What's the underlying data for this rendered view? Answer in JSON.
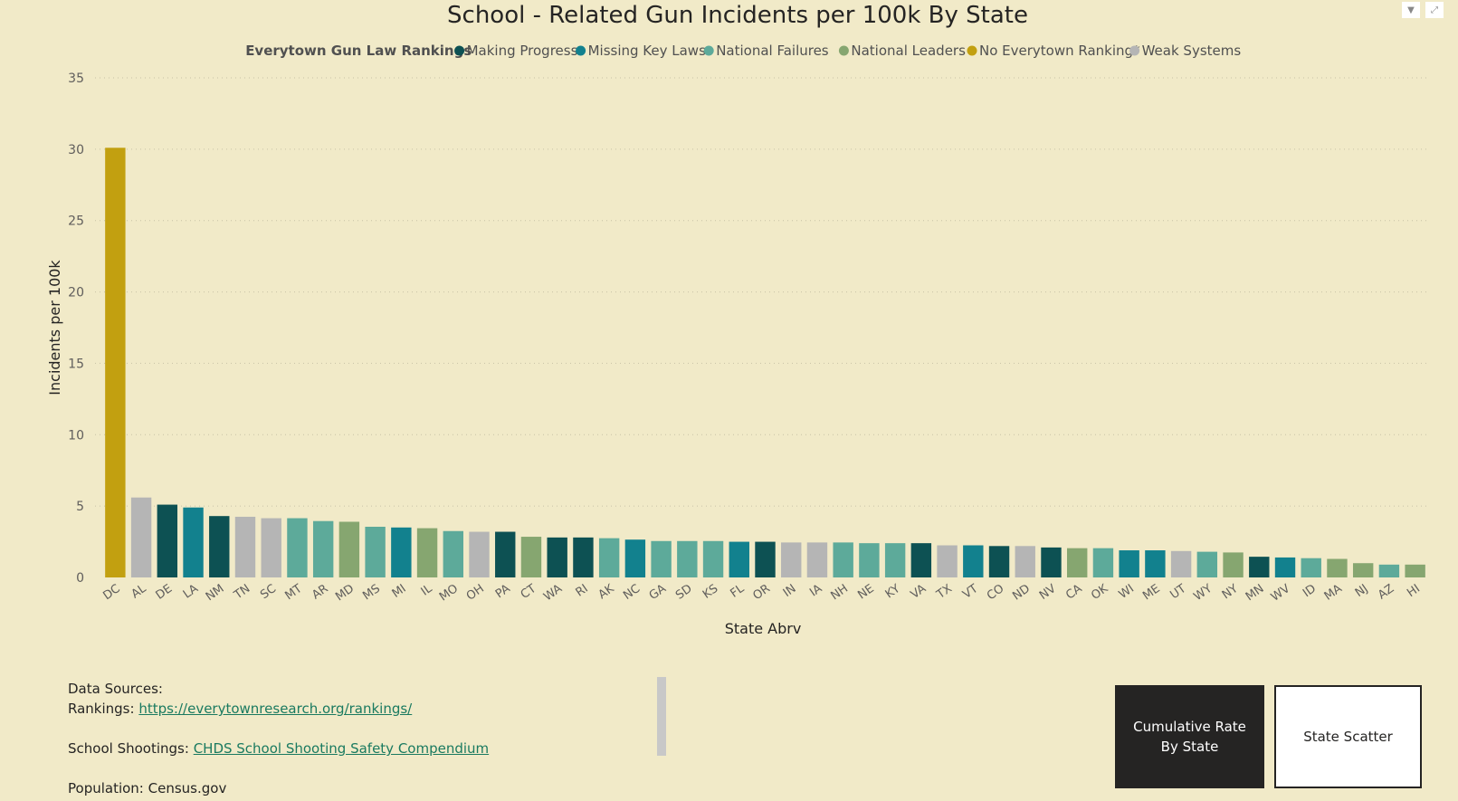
{
  "chart_data": {
    "type": "bar",
    "title": "School - Related Gun Incidents per 100k By State",
    "xlabel": "State Abrv",
    "ylabel": "Incidents per 100k",
    "ylim": [
      0,
      35
    ],
    "yticks": [
      0,
      5,
      10,
      15,
      20,
      25,
      30,
      35
    ],
    "grid": true,
    "legend": {
      "title": "Everytown Gun Law Rankings",
      "placement": "top-center",
      "entries": [
        {
          "name": "Making Progress",
          "color": "#0D5153"
        },
        {
          "name": "Missing Key Laws",
          "color": "#12818E"
        },
        {
          "name": "National Failures",
          "color": "#5DAA9A"
        },
        {
          "name": "National Leaders",
          "color": "#86A670"
        },
        {
          "name": "No Everytown Ranking*",
          "color": "#C2A010"
        },
        {
          "name": "Weak Systems",
          "color": "#B5B5B5"
        }
      ]
    },
    "categories": [
      "DC",
      "AL",
      "DE",
      "LA",
      "NM",
      "TN",
      "SC",
      "MT",
      "AR",
      "MD",
      "MS",
      "MI",
      "IL",
      "MO",
      "OH",
      "PA",
      "CT",
      "WA",
      "RI",
      "AK",
      "NC",
      "GA",
      "SD",
      "KS",
      "FL",
      "OR",
      "IN",
      "IA",
      "NH",
      "NE",
      "KY",
      "VA",
      "TX",
      "VT",
      "CO",
      "ND",
      "NV",
      "CA",
      "OK",
      "WI",
      "ME",
      "UT",
      "WY",
      "NY",
      "MN",
      "WV",
      "ID",
      "MA",
      "NJ",
      "AZ",
      "HI"
    ],
    "values": [
      30.1,
      5.6,
      5.1,
      4.9,
      4.3,
      4.25,
      4.15,
      4.15,
      3.95,
      3.9,
      3.55,
      3.5,
      3.45,
      3.25,
      3.2,
      3.2,
      2.85,
      2.8,
      2.8,
      2.75,
      2.65,
      2.55,
      2.55,
      2.55,
      2.5,
      2.5,
      2.45,
      2.45,
      2.45,
      2.4,
      2.4,
      2.4,
      2.25,
      2.25,
      2.2,
      2.2,
      2.1,
      2.05,
      2.05,
      1.9,
      1.9,
      1.85,
      1.8,
      1.75,
      1.45,
      1.4,
      1.35,
      1.3,
      1.0,
      0.9,
      0.9
    ],
    "groups": [
      "No Everytown Ranking*",
      "Weak Systems",
      "Making Progress",
      "Missing Key Laws",
      "Making Progress",
      "Weak Systems",
      "Weak Systems",
      "National Failures",
      "National Failures",
      "National Leaders",
      "National Failures",
      "Missing Key Laws",
      "National Leaders",
      "National Failures",
      "Weak Systems",
      "Making Progress",
      "National Leaders",
      "Making Progress",
      "Making Progress",
      "National Failures",
      "Missing Key Laws",
      "National Failures",
      "National Failures",
      "National Failures",
      "Missing Key Laws",
      "Making Progress",
      "Weak Systems",
      "Weak Systems",
      "National Failures",
      "National Failures",
      "National Failures",
      "Making Progress",
      "Weak Systems",
      "Missing Key Laws",
      "Making Progress",
      "Weak Systems",
      "Making Progress",
      "National Leaders",
      "National Failures",
      "Missing Key Laws",
      "Missing Key Laws",
      "Weak Systems",
      "National Failures",
      "National Leaders",
      "Making Progress",
      "Missing Key Laws",
      "National Failures",
      "National Leaders",
      "National Leaders",
      "National Failures",
      "National Leaders"
    ]
  },
  "footer": {
    "sources_title": "Data Sources:",
    "rankings_label": "Rankings:",
    "rankings_link": "https://everytownresearch.org/rankings/",
    "shootings_label": "School Shootings:",
    "shootings_link": "CHDS School Shooting Safety Compendium",
    "population_text": "Population: Census.gov"
  },
  "buttons": {
    "cumulative": "Cumulative Rate By State",
    "scatter": "State Scatter"
  },
  "icons": {
    "filter": "filter-icon",
    "focus": "focus-mode-icon"
  }
}
